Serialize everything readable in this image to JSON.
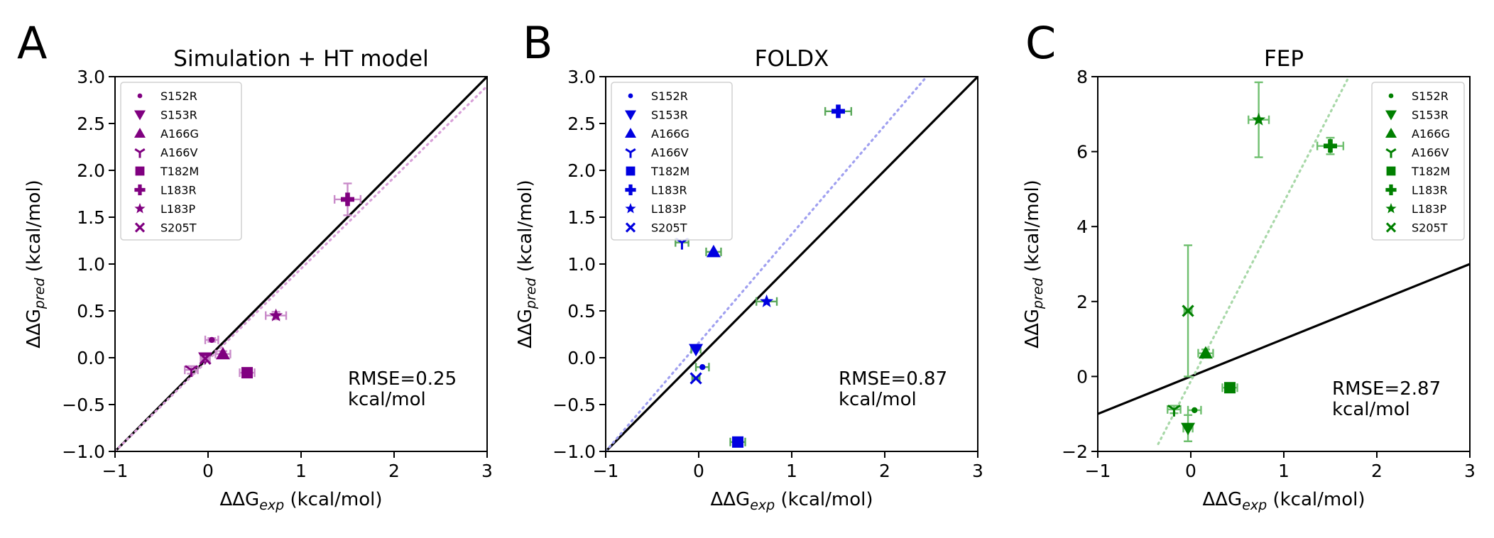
{
  "chart_data": [
    {
      "panel": "A",
      "type": "scatter",
      "title": "Simulation + HT model",
      "xlabel": {
        "prefix": "ΔΔG",
        "sub": "exp",
        "suffix": " (kcal/mol)"
      },
      "ylabel": {
        "prefix": "ΔΔG",
        "sub": "pred",
        "suffix": " (kcal/mol)"
      },
      "xlim": [
        -1,
        3
      ],
      "ylim": [
        -1,
        3
      ],
      "xticks": [
        -1,
        0,
        1,
        2,
        3
      ],
      "yticks": [
        -1.0,
        -0.5,
        0.0,
        0.5,
        1.0,
        1.5,
        2.0,
        2.5,
        3.0
      ],
      "ytick_labels": [
        "−1.0",
        "−0.5",
        "0.0",
        "0.5",
        "1.0",
        "1.5",
        "2.0",
        "2.5",
        "3.0"
      ],
      "xtick_labels": [
        "−1",
        "0",
        "1",
        "2",
        "3"
      ],
      "color": "#800080",
      "errorbar_color": "#c98bc9",
      "fit_color": "#d8a0d8",
      "fit_line": [
        [
          -1,
          -1
        ],
        [
          3,
          2.9
        ]
      ],
      "legend_position": "upper-left",
      "annotation": [
        "RMSE=0.25",
        "kcal/mol"
      ],
      "points": [
        {
          "name": "S152R",
          "marker": "circle",
          "x": 0.04,
          "y": 0.19,
          "xerr": 0.07,
          "yerr": 0.02
        },
        {
          "name": "S153R",
          "marker": "triangle-down",
          "x": -0.03,
          "y": 0.0,
          "xerr": 0.05,
          "yerr": 0.03
        },
        {
          "name": "A166G",
          "marker": "triangle-up",
          "x": 0.16,
          "y": 0.04,
          "xerr": 0.08,
          "yerr": 0.03
        },
        {
          "name": "A166V",
          "marker": "tri-down",
          "x": -0.18,
          "y": -0.13,
          "xerr": 0.07,
          "yerr": 0.04
        },
        {
          "name": "T182M",
          "marker": "square",
          "x": 0.42,
          "y": -0.16,
          "xerr": 0.08,
          "yerr": 0.04
        },
        {
          "name": "L183R",
          "marker": "plus",
          "x": 1.5,
          "y": 1.69,
          "xerr": 0.14,
          "yerr": 0.17
        },
        {
          "name": "L183P",
          "marker": "star",
          "x": 0.73,
          "y": 0.45,
          "xerr": 0.11,
          "yerr": 0.04
        },
        {
          "name": "S205T",
          "marker": "x",
          "x": -0.03,
          "y": -0.01,
          "xerr": 0.04,
          "yerr": 0.02
        }
      ]
    },
    {
      "panel": "B",
      "type": "scatter",
      "title": "FOLDX",
      "xlabel": {
        "prefix": "ΔΔG",
        "sub": "exp",
        "suffix": " (kcal/mol)"
      },
      "ylabel": {
        "prefix": "ΔΔG",
        "sub": "pred",
        "suffix": " (kcal/mol)"
      },
      "xlim": [
        -1,
        3
      ],
      "ylim": [
        -1,
        3
      ],
      "xticks": [
        -1,
        0,
        1,
        2,
        3
      ],
      "yticks": [
        -1.0,
        -0.5,
        0.0,
        0.5,
        1.0,
        1.5,
        2.0,
        2.5,
        3.0
      ],
      "ytick_labels": [
        "−1.0",
        "−0.5",
        "0.0",
        "0.5",
        "1.0",
        "1.5",
        "2.0",
        "2.5",
        "3.0"
      ],
      "xtick_labels": [
        "−1",
        "0",
        "1",
        "2",
        "3"
      ],
      "color": "#0000e0",
      "errorbar_color": "#5aa85a",
      "fit_color": "#a0a0f0",
      "fit_line": [
        [
          -1,
          -1
        ],
        [
          2.45,
          3
        ]
      ],
      "legend_position": "upper-left",
      "annotation": [
        "RMSE=0.87",
        "kcal/mol"
      ],
      "points": [
        {
          "name": "S152R",
          "marker": "circle",
          "x": 0.04,
          "y": -0.1,
          "xerr": 0.07,
          "yerr": 0.0
        },
        {
          "name": "S153R",
          "marker": "triangle-down",
          "x": -0.03,
          "y": 0.09,
          "xerr": 0.05,
          "yerr": 0.0
        },
        {
          "name": "A166G",
          "marker": "triangle-up",
          "x": 0.16,
          "y": 1.13,
          "xerr": 0.08,
          "yerr": 0.0
        },
        {
          "name": "A166V",
          "marker": "tri-down",
          "x": -0.18,
          "y": 1.23,
          "xerr": 0.07,
          "yerr": 0.0
        },
        {
          "name": "T182M",
          "marker": "square",
          "x": 0.42,
          "y": -0.9,
          "xerr": 0.08,
          "yerr": 0.0
        },
        {
          "name": "L183R",
          "marker": "plus",
          "x": 1.5,
          "y": 2.63,
          "xerr": 0.14,
          "yerr": 0.0
        },
        {
          "name": "L183P",
          "marker": "star",
          "x": 0.73,
          "y": 0.6,
          "xerr": 0.11,
          "yerr": 0.0
        },
        {
          "name": "S205T",
          "marker": "x",
          "x": -0.03,
          "y": -0.22,
          "xerr": 0.04,
          "yerr": 0.0
        }
      ]
    },
    {
      "panel": "C",
      "type": "scatter",
      "title": "FEP",
      "xlabel": {
        "prefix": "ΔΔG",
        "sub": "exp",
        "suffix": " (kcal/mol)"
      },
      "ylabel": {
        "prefix": "ΔΔG",
        "sub": "pred",
        "suffix": " (kcal/mol)"
      },
      "xlim": [
        -1,
        3
      ],
      "ylim": [
        -2,
        8
      ],
      "xticks": [
        -1,
        0,
        1,
        2,
        3
      ],
      "yticks": [
        -2,
        0,
        2,
        4,
        6,
        8
      ],
      "ytick_labels": [
        "−2",
        "0",
        "2",
        "4",
        "6",
        "8"
      ],
      "xtick_labels": [
        "−1",
        "0",
        "1",
        "2",
        "3"
      ],
      "color": "#008000",
      "errorbar_color": "#6fbf6f",
      "fit_color": "#a8d8a8",
      "fit_line": [
        [
          -0.35,
          -1.8
        ],
        [
          1.7,
          8
        ]
      ],
      "legend_position": "upper-right",
      "annotation": [
        "RMSE=2.87",
        "kcal/mol"
      ],
      "points": [
        {
          "name": "S152R",
          "marker": "circle",
          "x": 0.04,
          "y": -0.9,
          "xerr": 0.07,
          "yerr": 0.0
        },
        {
          "name": "S153R",
          "marker": "triangle-down",
          "x": -0.03,
          "y": -1.38,
          "xerr": 0.05,
          "yerr": 0.35
        },
        {
          "name": "A166G",
          "marker": "triangle-up",
          "x": 0.16,
          "y": 0.62,
          "xerr": 0.08,
          "yerr": 0.1
        },
        {
          "name": "A166V",
          "marker": "tri-down",
          "x": -0.18,
          "y": -0.88,
          "xerr": 0.07,
          "yerr": 0.1
        },
        {
          "name": "T182M",
          "marker": "square",
          "x": 0.42,
          "y": -0.3,
          "xerr": 0.08,
          "yerr": 0.06
        },
        {
          "name": "L183R",
          "marker": "plus",
          "x": 1.5,
          "y": 6.15,
          "xerr": 0.14,
          "yerr": 0.22
        },
        {
          "name": "L183P",
          "marker": "star",
          "x": 0.73,
          "y": 6.85,
          "xerr": 0.11,
          "yerr": 1.0
        },
        {
          "name": "S205T",
          "marker": "x",
          "x": -0.03,
          "y": 1.75,
          "xerr": 0.04,
          "yerr": 1.75
        }
      ]
    }
  ]
}
